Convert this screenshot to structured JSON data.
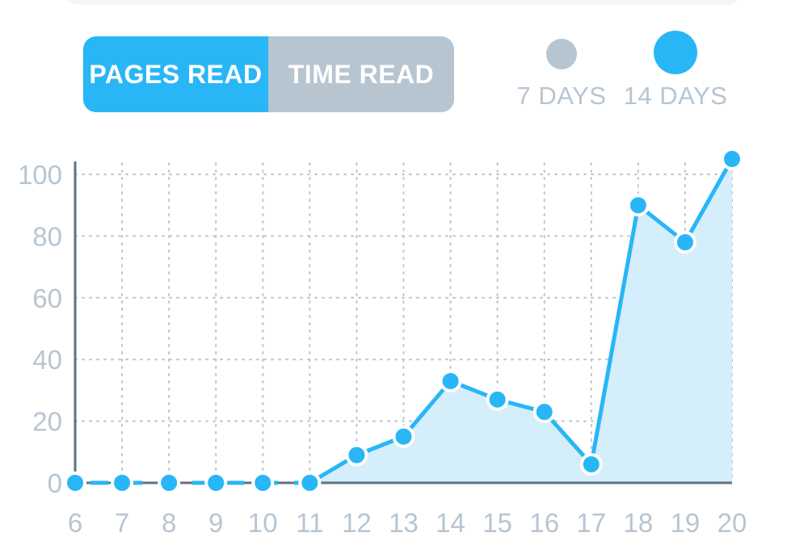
{
  "toggle": {
    "pages_read_label": "PAGES READ",
    "time_read_label": "TIME READ",
    "active": "pages_read"
  },
  "range": {
    "seven_days_label": "7 DAYS",
    "fourteen_days_label": "14 DAYS",
    "selected": "14_days"
  },
  "colors": {
    "accent": "#29b6f6",
    "muted": "#b7c5d1",
    "area_fill": "#d4eefb",
    "axis": "#5d7382",
    "grid": "#b7c5d1"
  },
  "chart_data": {
    "type": "area",
    "x": [
      6,
      7,
      8,
      9,
      10,
      11,
      12,
      13,
      14,
      15,
      16,
      17,
      18,
      19,
      20
    ],
    "series": [
      {
        "values": [
          0,
          0,
          0,
          0,
          0,
          0,
          9,
          15,
          33,
          27,
          23,
          6,
          90,
          78,
          105
        ]
      }
    ],
    "xlabel": "",
    "ylabel": "",
    "yticks": [
      0,
      20,
      40,
      60,
      80,
      100
    ],
    "ylim": [
      0,
      105
    ],
    "grid": true,
    "dashed_segment_until_x": 11
  }
}
